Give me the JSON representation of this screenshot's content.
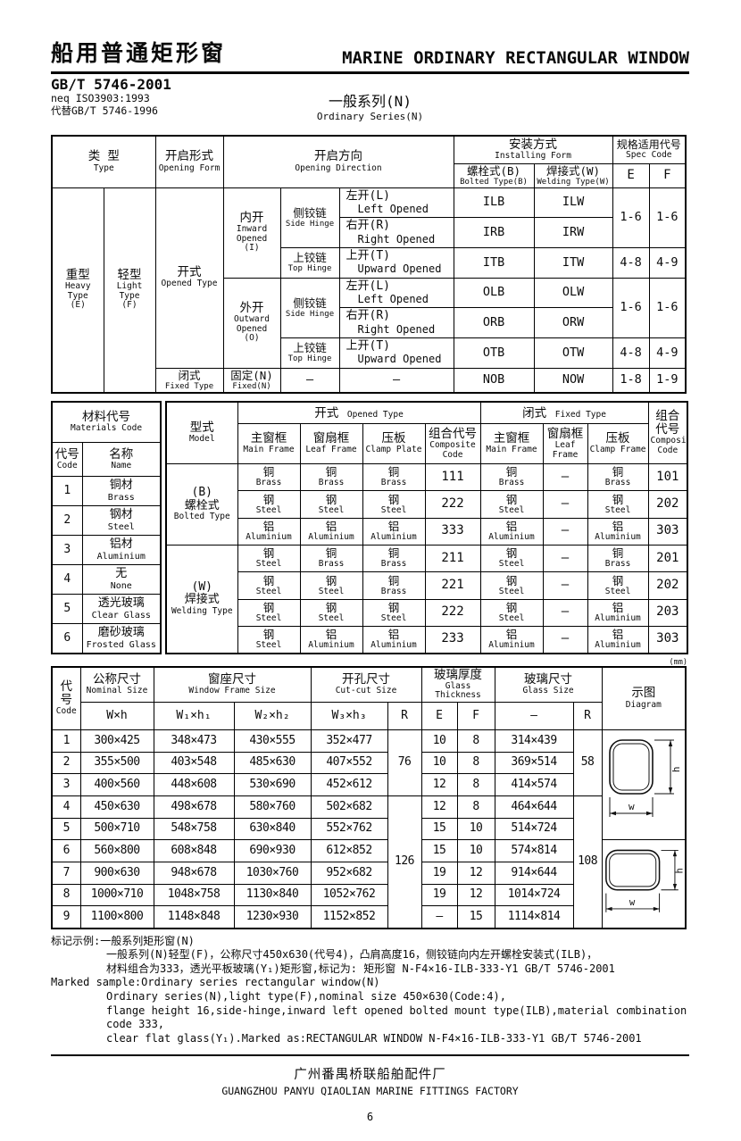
{
  "header": {
    "title_cn": "船用普通矩形窗",
    "title_en": "MARINE ORDINARY RECTANGULAR WINDOW",
    "standard_no": "GB/T 5746-2001",
    "standard_neq": "neq ISO3903:1993",
    "standard_replaces": "代替GB/T 5746-1996",
    "series_cn": "一般系列(N)",
    "series_en": "Ordinary Series(N)"
  },
  "table1": {
    "head": {
      "type_cn": "类  型",
      "type_en": "Type",
      "form_cn": "开启形式",
      "form_en": "Opening Form",
      "direction_cn": "开启方向",
      "direction_en": "Opening Direction",
      "install_cn": "安装方式",
      "install_en": "Installing Form",
      "bolted_cn": "螺栓式(B)",
      "bolted_en": "Bolted Type(B)",
      "welding_cn": "焊接式(W)",
      "welding_en": "Welding Type(W)",
      "spec_cn": "规格适用代号",
      "spec_en": "Spec Code",
      "e": "E",
      "f": "F"
    },
    "heavy": {
      "cn": "重型",
      "en": "Heavy\nType\n(E)"
    },
    "light": {
      "cn": "轻型",
      "en": "Light\nType\n(F)"
    },
    "opened": {
      "cn": "开式",
      "en": "Opened Type"
    },
    "fixed": {
      "cn": "闭式",
      "en": "Fixed Type"
    },
    "inward": {
      "cn": "内开",
      "en": "Inward\nOpened\n(I)"
    },
    "outward": {
      "cn": "外开",
      "en": "Outward\nOpened\n(O)"
    },
    "fixed_n": {
      "cn": "固定(N)",
      "en": "Fixed(N)"
    },
    "side_hinge": {
      "cn": "侧铰链",
      "en": "Side Hinge"
    },
    "top_hinge": {
      "cn": "上铰链",
      "en": "Top Hinge"
    },
    "dash": "—",
    "dirs": {
      "left_cn": "左开(L)",
      "left_en": "Left Opened",
      "right_cn": "右开(R)",
      "right_en": "Right Opened",
      "up_cn": "上开(T)",
      "up_en": "Upward Opened"
    },
    "codes": {
      "ilb": "ILB",
      "ilw": "ILW",
      "irb": "IRB",
      "irw": "IRW",
      "itb": "ITB",
      "itw": "ITW",
      "olb": "OLB",
      "olw": "OLW",
      "orb": "ORB",
      "orw": "ORW",
      "otb": "OTB",
      "otw": "OTW",
      "nob": "NOB",
      "now": "NOW"
    },
    "spec": {
      "i_side_e": "1-6",
      "i_side_f": "1-6",
      "i_top_e": "4-8",
      "i_top_f": "4-9",
      "o_side_e": "1-6",
      "o_side_f": "1-6",
      "o_top_e": "4-8",
      "o_top_f": "4-9",
      "fixed_e": "1-8",
      "fixed_f": "1-9"
    }
  },
  "materials": {
    "title_cn": "材料代号",
    "title_en": "Materials Code",
    "code_cn": "代号",
    "code_en": "Code",
    "name_cn": "名称",
    "name_en": "Name",
    "rows": [
      {
        "code": "1",
        "cn": "铜材",
        "en": "Brass"
      },
      {
        "code": "2",
        "cn": "钢材",
        "en": "Steel"
      },
      {
        "code": "3",
        "cn": "铝材",
        "en": "Aluminium"
      },
      {
        "code": "4",
        "cn": "无",
        "en": "None"
      },
      {
        "code": "5",
        "cn": "透光玻璃",
        "en": "Clear Glass"
      },
      {
        "code": "6",
        "cn": "磨砂玻璃",
        "en": "Frosted Glass"
      }
    ]
  },
  "models": {
    "head": {
      "model_cn": "型式",
      "model_en": "Model",
      "opened_cn": "开式",
      "opened_en": "Opened Type",
      "fixed_cn": "闭式",
      "fixed_en": "Fixed Type",
      "main_cn": "主窗框",
      "main_en": "Main Frame",
      "leaf_cn": "窗扇框",
      "leaf_en": "Leaf Frame",
      "clamp_plate_cn": "压板",
      "clamp_plate_en": "Clamp Plate",
      "clamp_frame_cn": "压板",
      "clamp_frame_en": "Clamp Frame",
      "comp_cn": "组合代号",
      "comp_en": "Composite\nCode",
      "comp2_cn": "组合代号",
      "comp2_en": "Composite\nCode"
    },
    "groups": [
      {
        "label": {
          "l1": "(B)",
          "cn": "螺栓式",
          "en": "Bolted Type"
        },
        "rows": [
          {
            "open_main": {
              "cn": "铜",
              "en": "Brass"
            },
            "open_leaf": {
              "cn": "铜",
              "en": "Brass"
            },
            "open_clamp": {
              "cn": "铜",
              "en": "Brass"
            },
            "open_code": "111",
            "fix_main": {
              "cn": "铜",
              "en": "Brass"
            },
            "fix_leaf": "—",
            "fix_clamp": {
              "cn": "铜",
              "en": "Brass"
            },
            "code": "101"
          },
          {
            "open_main": {
              "cn": "钢",
              "en": "Steel"
            },
            "open_leaf": {
              "cn": "钢",
              "en": "Steel"
            },
            "open_clamp": {
              "cn": "钢",
              "en": "Steel"
            },
            "open_code": "222",
            "fix_main": {
              "cn": "钢",
              "en": "Steel"
            },
            "fix_leaf": "—",
            "fix_clamp": {
              "cn": "钢",
              "en": "Steel"
            },
            "code": "202"
          },
          {
            "open_main": {
              "cn": "铝",
              "en": "Aluminium"
            },
            "open_leaf": {
              "cn": "铝",
              "en": "Aluminium"
            },
            "open_clamp": {
              "cn": "铝",
              "en": "Aluminium"
            },
            "open_code": "333",
            "fix_main": {
              "cn": "铝",
              "en": "Aluminium"
            },
            "fix_leaf": "—",
            "fix_clamp": {
              "cn": "铝",
              "en": "Aluminium"
            },
            "code": "303"
          }
        ]
      },
      {
        "label": {
          "l1": "(W)",
          "cn": "焊接式",
          "en": "Welding Type"
        },
        "rows": [
          {
            "open_main": {
              "cn": "钢",
              "en": "Steel"
            },
            "open_leaf": {
              "cn": "铜",
              "en": "Brass"
            },
            "open_clamp": {
              "cn": "铜",
              "en": "Brass"
            },
            "open_code": "211",
            "fix_main": {
              "cn": "钢",
              "en": "Steel"
            },
            "fix_leaf": "—",
            "fix_clamp": {
              "cn": "铜",
              "en": "Brass"
            },
            "code": "201"
          },
          {
            "open_main": {
              "cn": "钢",
              "en": "Steel"
            },
            "open_leaf": {
              "cn": "钢",
              "en": "Steel"
            },
            "open_clamp": {
              "cn": "铜",
              "en": "Brass"
            },
            "open_code": "221",
            "fix_main": {
              "cn": "钢",
              "en": "Steel"
            },
            "fix_leaf": "—",
            "fix_clamp": {
              "cn": "钢",
              "en": "Steel"
            },
            "code": "202"
          },
          {
            "open_main": {
              "cn": "钢",
              "en": "Steel"
            },
            "open_leaf": {
              "cn": "钢",
              "en": "Steel"
            },
            "open_clamp": {
              "cn": "钢",
              "en": "Steel"
            },
            "open_code": "222",
            "fix_main": {
              "cn": "钢",
              "en": "Steel"
            },
            "fix_leaf": "—",
            "fix_clamp": {
              "cn": "铝",
              "en": "Aluminium"
            },
            "code": "203"
          },
          {
            "open_main": {
              "cn": "钢",
              "en": "Steel"
            },
            "open_leaf": {
              "cn": "铝",
              "en": "Aluminium"
            },
            "open_clamp": {
              "cn": "铝",
              "en": "Aluminium"
            },
            "open_code": "233",
            "fix_main": {
              "cn": "铝",
              "en": "Aluminium"
            },
            "fix_leaf": "—",
            "fix_clamp": {
              "cn": "铝",
              "en": "Aluminium"
            },
            "code": "303"
          }
        ]
      }
    ]
  },
  "unit_label": "(mm)",
  "sizes": {
    "head": {
      "code_cn": "代号",
      "code_en": "Code",
      "nominal_cn": "公称尺寸",
      "nominal_en": "Nominal Size",
      "frame_cn": "窗座尺寸",
      "frame_en": "Window Frame Size",
      "cut_cn": "开孔尺寸",
      "cut_en": "Cut-cut Size",
      "thick_cn": "玻璃厚度",
      "thick_en": "Glass Thickness",
      "glass_cn": "玻璃尺寸",
      "glass_en": "Glass Size",
      "diagram_cn": "示图",
      "diagram_en": "Diagram",
      "wh": "W×h",
      "w1h1": "W₁×h₁",
      "w2h2": "W₂×h₂",
      "w3h3": "W₃×h₃",
      "r": "R",
      "e": "E",
      "f": "F",
      "dash": "–",
      "r2": "R"
    },
    "rows": [
      {
        "code": "1",
        "nominal": "300×425",
        "w1": "348×473",
        "w2": "430×555",
        "w3": "352×477",
        "e": "10",
        "f": "8",
        "glass": "314×439"
      },
      {
        "code": "2",
        "nominal": "355×500",
        "w1": "403×548",
        "w2": "485×630",
        "w3": "407×552",
        "e": "10",
        "f": "8",
        "glass": "369×514"
      },
      {
        "code": "3",
        "nominal": "400×560",
        "w1": "448×608",
        "w2": "530×690",
        "w3": "452×612",
        "e": "12",
        "f": "8",
        "glass": "414×574"
      },
      {
        "code": "4",
        "nominal": "450×630",
        "w1": "498×678",
        "w2": "580×760",
        "w3": "502×682",
        "e": "12",
        "f": "8",
        "glass": "464×644"
      },
      {
        "code": "5",
        "nominal": "500×710",
        "w1": "548×758",
        "w2": "630×840",
        "w3": "552×762",
        "e": "15",
        "f": "10",
        "glass": "514×724"
      },
      {
        "code": "6",
        "nominal": "560×800",
        "w1": "608×848",
        "w2": "690×930",
        "w3": "612×852",
        "e": "15",
        "f": "10",
        "glass": "574×814"
      },
      {
        "code": "7",
        "nominal": "900×630",
        "w1": "948×678",
        "w2": "1030×760",
        "w3": "952×682",
        "e": "19",
        "f": "12",
        "glass": "914×644"
      },
      {
        "code": "8",
        "nominal": "1000×710",
        "w1": "1048×758",
        "w2": "1130×840",
        "w3": "1052×762",
        "e": "19",
        "f": "12",
        "glass": "1014×724"
      },
      {
        "code": "9",
        "nominal": "1100×800",
        "w1": "1148×848",
        "w2": "1230×930",
        "w3": "1152×852",
        "e": "—",
        "f": "15",
        "glass": "1114×814"
      }
    ],
    "r_groups": [
      {
        "value": "76",
        "span": 3
      },
      {
        "value": "126",
        "span": 6
      }
    ],
    "glass_r_groups": [
      {
        "value": "58",
        "span": 3
      },
      {
        "value": "108",
        "span": 6
      }
    ],
    "diagram_groups": [
      {
        "span": 5,
        "orientation": "portrait"
      },
      {
        "span": 4,
        "orientation": "landscape"
      }
    ],
    "dim_labels": {
      "w": "w",
      "h": "h"
    }
  },
  "notes": {
    "cn_lines": [
      "标记示例:一般系列矩形窗(N)",
      "一般系列(N)轻型(F)，公称尺寸450x630(代号4)，凸肩高度16，侧铰链向内左开螺栓安装式(ILB)，",
      "材料组合为333，透光平板玻璃(Y₁)矩形窗,标记为: 矩形窗  N-F4×16-ILB-333-Y1  GB/T 5746-2001"
    ],
    "en_lines": [
      "Marked sample:Ordinary series rectangular window(N)",
      "Ordinary series(N),light type(F),nominal size 450×630(Code:4),",
      "flange height 16,side-hinge,inward left opened bolted mount type(ILB),material combination code 333,",
      "clear flat glass(Y₁).Marked as:RECTANGULAR WINDOW  N-F4×16-ILB-333-Y1  GB/T 5746-2001"
    ]
  },
  "footer": {
    "factory_cn": "广州番禺桥联船舶配件厂",
    "factory_en": "GUANGZHOU PANYU QIAOLIAN MARINE FITTINGS FACTORY",
    "page": "6"
  }
}
